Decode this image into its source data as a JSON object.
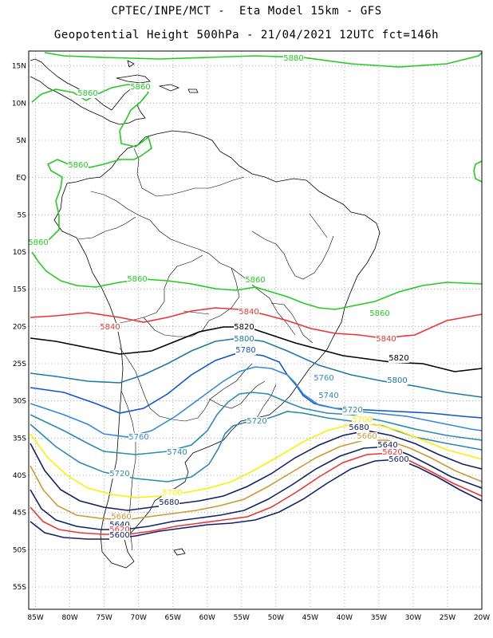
{
  "header": {
    "line1": "CPTEC/INPE/MCT -  Eta Model 15km - GFS",
    "line2": "Geopotential Height 500hPa - 21/04/2021 12UTC fct=146h"
  },
  "map": {
    "lon_range": [
      -86,
      -20
    ],
    "lat_range": [
      -58,
      17
    ],
    "lat_ticks": [
      "15N",
      "10N",
      "5N",
      "EQ",
      "5S",
      "10S",
      "15S",
      "20S",
      "25S",
      "30S",
      "35S",
      "40S",
      "45S",
      "50S",
      "55S"
    ],
    "lon_ticks": [
      "85W",
      "80W",
      "75W",
      "70W",
      "65W",
      "60W",
      "55W",
      "50W",
      "45W",
      "40W",
      "35W",
      "30W",
      "25W",
      "20W"
    ],
    "grid": true,
    "contour_colors": {
      "5880": "#22cc22",
      "5860": "#22cc22",
      "5840": "#ee3333",
      "5820": "#000000",
      "5800": "#2277aa",
      "5780": "#1155cc",
      "5760": "#3388dd",
      "5740": "#2a8ab0",
      "5720": "#2a8ab0",
      "5700": "#ffee00",
      "5680": "#112266",
      "5660": "#cc9933",
      "5640": "#112266",
      "5620": "#ee3333",
      "5600": "#112266"
    },
    "contour_labels": [
      {
        "text": "5880",
        "c": "5880"
      },
      {
        "text": "5860",
        "c": "5860"
      },
      {
        "text": "5860",
        "c": "5860"
      },
      {
        "text": "5860",
        "c": "5860"
      },
      {
        "text": "5860",
        "c": "5860"
      },
      {
        "text": "5860",
        "c": "5860"
      },
      {
        "text": "5860",
        "c": "5860"
      },
      {
        "text": "5860",
        "c": "5860"
      },
      {
        "text": "5840",
        "c": "5840"
      },
      {
        "text": "5840",
        "c": "5840"
      },
      {
        "text": "5840",
        "c": "5840"
      },
      {
        "text": "5820",
        "c": "5820"
      },
      {
        "text": "5820",
        "c": "5820"
      },
      {
        "text": "5800",
        "c": "5800"
      },
      {
        "text": "5800",
        "c": "5800"
      },
      {
        "text": "5780",
        "c": "5780"
      },
      {
        "text": "5760",
        "c": "5760"
      },
      {
        "text": "5760",
        "c": "5760"
      },
      {
        "text": "5740",
        "c": "5740"
      },
      {
        "text": "5740",
        "c": "5740"
      },
      {
        "text": "5720",
        "c": "5720"
      },
      {
        "text": "5720",
        "c": "5720"
      },
      {
        "text": "5720",
        "c": "5720"
      },
      {
        "text": "5700",
        "c": "5700"
      },
      {
        "text": "5700",
        "c": "5700"
      },
      {
        "text": "5680",
        "c": "5680"
      },
      {
        "text": "5680",
        "c": "5680"
      },
      {
        "text": "5660",
        "c": "5660"
      },
      {
        "text": "5660",
        "c": "5660"
      },
      {
        "text": "5640",
        "c": "5640"
      },
      {
        "text": "5640",
        "c": "5640"
      },
      {
        "text": "5620",
        "c": "5620"
      },
      {
        "text": "5620",
        "c": "5620"
      },
      {
        "text": "5600",
        "c": "5600"
      },
      {
        "text": "5600",
        "c": "5600"
      }
    ]
  }
}
